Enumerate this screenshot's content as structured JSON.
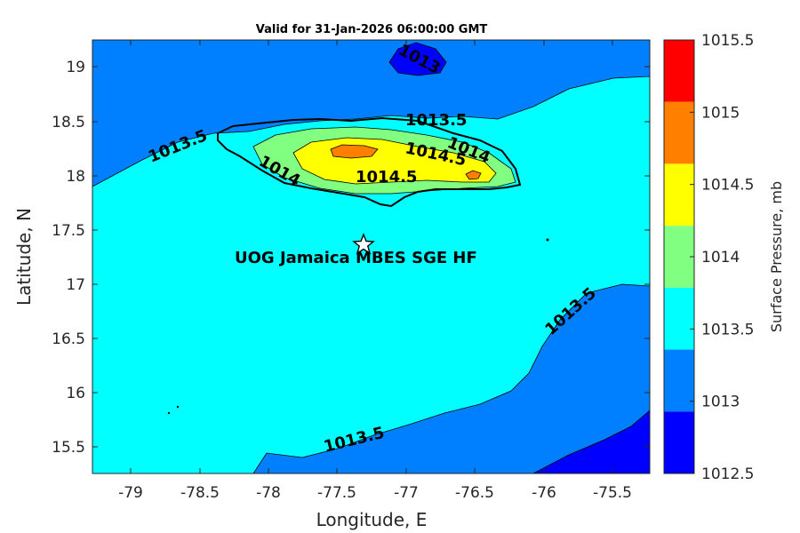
{
  "title": "Valid for 31-Jan-2026 06:00:00 GMT",
  "xlabel": "Longitude, E",
  "ylabel": "Latitude, N",
  "colorbar_label": "Surface Pressure, mb",
  "site_label": "UOG Jamaica MBES SGE HF",
  "x_ticks": [
    "-79",
    "-78.5",
    "-78",
    "-77.5",
    "-77",
    "-76.5",
    "-76",
    "-75.5"
  ],
  "y_ticks": [
    "19",
    "18.5",
    "18",
    "17.5",
    "17",
    "16.5",
    "16",
    "15.5"
  ],
  "colorbar": {
    "ticks": [
      "1015.5",
      "1015",
      "1014.5",
      "1014",
      "1013.5",
      "1013",
      "1012.5"
    ],
    "colors": [
      "#ff0000",
      "#ff8000",
      "#ffff00",
      "#80ff80",
      "#00ffff",
      "#0080ff",
      "#0000ff"
    ]
  },
  "contour_labels": [
    {
      "text": "1013"
    },
    {
      "text": "1013.5"
    },
    {
      "text": "1013.5"
    },
    {
      "text": "1014"
    },
    {
      "text": "1014.5"
    },
    {
      "text": "1014"
    },
    {
      "text": "1014.5"
    },
    {
      "text": "1013.5"
    },
    {
      "text": "1013.5"
    }
  ]
}
